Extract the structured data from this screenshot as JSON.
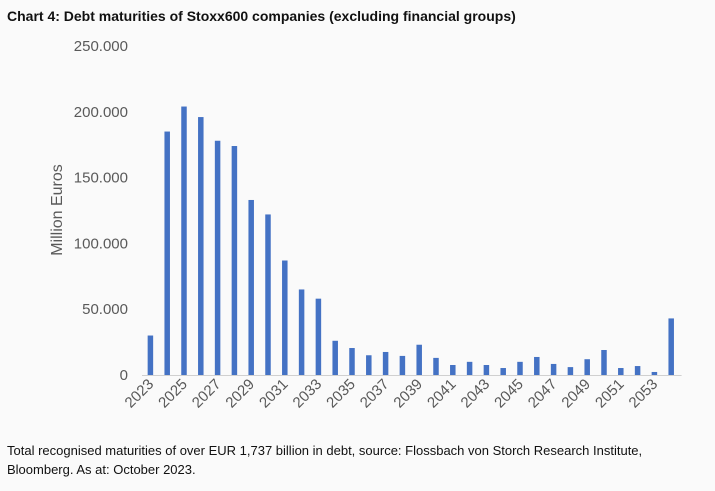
{
  "chart_data": {
    "type": "bar",
    "title": "Chart 4: Debt maturities of Stoxx600 companies (excluding financial groups)",
    "xlabel": "",
    "ylabel": "Million Euros",
    "ylim": [
      0,
      250000
    ],
    "yticks": [
      "0",
      "50.000",
      "100.000",
      "150.000",
      "200.000",
      "250.000"
    ],
    "ytick_values": [
      0,
      50000,
      100000,
      150000,
      200000,
      250000
    ],
    "grid": false,
    "bar_color": "#4472c4",
    "categories": [
      "2023",
      "2024",
      "2025",
      "2026",
      "2027",
      "2028",
      "2029",
      "2030",
      "2031",
      "2032",
      "2033",
      "2034",
      "2035",
      "2036",
      "2037",
      "2038",
      "2039",
      "2040",
      "2041",
      "2042",
      "2043",
      "2044",
      "2045",
      "2046",
      "2047",
      "2048",
      "2049",
      "2050",
      "2051",
      "2052",
      "2053",
      "2054"
    ],
    "xtick_labels": [
      "2023",
      "",
      "2025",
      "",
      "2027",
      "",
      "2029",
      "",
      "2031",
      "",
      "2033",
      "",
      "2035",
      "",
      "2037",
      "",
      "2039",
      "",
      "2041",
      "",
      "2043",
      "",
      "2045",
      "",
      "2047",
      "",
      "2049",
      "",
      "2051",
      "",
      "2053",
      ""
    ],
    "values": [
      30000,
      185000,
      204000,
      196000,
      178000,
      174000,
      133000,
      122000,
      87000,
      65000,
      58000,
      26000,
      20500,
      15000,
      17500,
      14500,
      23000,
      13000,
      7600,
      10000,
      7600,
      5300,
      10000,
      13700,
      8400,
      6000,
      12000,
      19000,
      5300,
      6800,
      2300,
      43000
    ]
  },
  "footer": "Total recognised maturities of over EUR 1,737 billion in debt, source: Flossbach von Storch Research Institute, Bloomberg. As at: October 2023."
}
